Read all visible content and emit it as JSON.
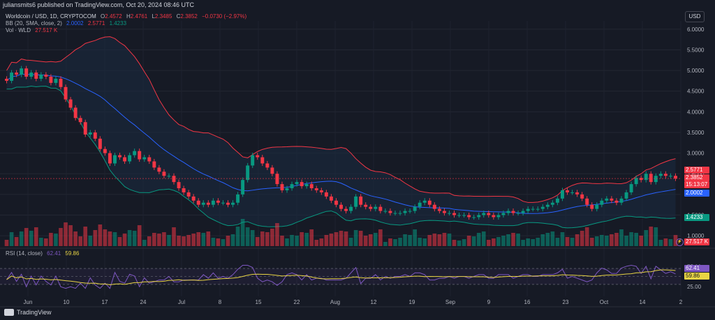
{
  "header": {
    "publisher": "juliansmits6 published on TradingView.com, Oct 20, 2024 08:46 UTC",
    "symbol": "Worldcoin / USD, 1D, CRYPTOCOM",
    "ohlc": {
      "o_label": "O",
      "o": "2.4572",
      "h_label": "H",
      "h": "2.4761",
      "l_label": "L",
      "l": "2.3485",
      "c_label": "C",
      "c": "2.3852",
      "change": "−0.0730 (−2.97%)"
    },
    "bb_label": "BB (20, SMA, close, 2)",
    "bb_values": [
      "2.0002",
      "2.5771",
      "1.4233"
    ],
    "vol_label": "Vol · WLD",
    "vol_value": "27.517 K",
    "rsi_label": "RSI (14, close)",
    "rsi_values": [
      "62.41",
      "59.86"
    ],
    "currency_button": "USD"
  },
  "price_tags": {
    "bb_upper": "2.5771",
    "last": "2.3852",
    "countdown": "15:13:07",
    "bb_basis": "2.0002",
    "bb_lower": "1.4233",
    "volume": "27.517 K",
    "rsi": "62.41",
    "rsi_ma": "59.86"
  },
  "footer": {
    "brand": "TradingView"
  },
  "colors": {
    "bg": "#161a25",
    "up": "#089981",
    "down": "#f23645",
    "bb_basis": "#2962ff",
    "bb_upper": "#f23645",
    "bb_lower": "#089981",
    "rsi": "#7e57c2",
    "rsi_ma": "#e8d444",
    "band_fill": "#1b2a3f"
  },
  "chart_data": [
    {
      "type": "candlestick",
      "title": "Worldcoin / USD, 1D, CRYPTOCOM",
      "price_axis": {
        "ticks": [
          "6.0000",
          "5.5000",
          "5.0000",
          "4.5000",
          "4.0000",
          "3.5000",
          "3.0000",
          "2.5000",
          "2.0000",
          "1.5000",
          "1.0000"
        ],
        "range": [
          0.8,
          6.2
        ]
      },
      "x_axis": {
        "ticks": [
          "Jun",
          "10",
          "17",
          "24",
          "Jul",
          "8",
          "15",
          "22",
          "Aug",
          "12",
          "19",
          "Sep",
          "9",
          "16",
          "23",
          "Oct",
          "14",
          "2"
        ]
      },
      "close_series": [
        4.75,
        4.95,
        4.9,
        5.05,
        4.85,
        4.95,
        4.8,
        4.9,
        4.85,
        4.7,
        4.8,
        4.6,
        4.3,
        4.1,
        3.85,
        3.75,
        3.45,
        3.5,
        3.35,
        3.1,
        3.0,
        2.75,
        2.95,
        2.9,
        2.8,
        2.95,
        3.05,
        2.85,
        2.9,
        2.8,
        2.65,
        2.55,
        2.45,
        2.45,
        2.3,
        2.15,
        2.05,
        1.95,
        1.85,
        1.75,
        1.8,
        1.75,
        1.85,
        1.8,
        1.8,
        1.75,
        1.8,
        2.0,
        2.35,
        2.7,
        2.95,
        2.9,
        2.75,
        2.65,
        2.5,
        2.25,
        2.1,
        2.15,
        2.25,
        2.3,
        2.2,
        2.25,
        2.15,
        2.1,
        2.05,
        1.95,
        1.85,
        1.75,
        1.65,
        1.6,
        1.7,
        1.95,
        1.75,
        1.7,
        1.65,
        1.7,
        1.6,
        1.6,
        1.55,
        1.55,
        1.55,
        1.6,
        1.6,
        1.7,
        1.8,
        1.85,
        1.75,
        1.65,
        1.6,
        1.55,
        1.55,
        1.5,
        1.5,
        1.5,
        1.45,
        1.45,
        1.5,
        1.55,
        1.5,
        1.45,
        1.5,
        1.55,
        1.6,
        1.55,
        1.55,
        1.6,
        1.65,
        1.65,
        1.65,
        1.7,
        1.75,
        1.8,
        1.9,
        2.1,
        2.05,
        2.05,
        2.0,
        1.9,
        1.75,
        1.65,
        1.75,
        1.85,
        1.9,
        1.85,
        1.8,
        1.9,
        2.05,
        2.25,
        2.4,
        2.35,
        2.5,
        2.3,
        2.45,
        2.5,
        2.45,
        2.45,
        2.3852
      ],
      "bb_upper_tag": "2.5771",
      "bb_basis_tag": "2.0002",
      "bb_lower_tag": "1.4233"
    },
    {
      "type": "bar",
      "title": "Vol · WLD",
      "last_value": "27.517 K"
    },
    {
      "type": "line",
      "title": "RSI (14, close)",
      "y_axis": {
        "ticks": [
          "75.00",
          "50.00",
          "25.00"
        ],
        "range": [
          0,
          100
        ]
      },
      "last_rsi": 62.41,
      "last_ma": 59.86
    }
  ]
}
